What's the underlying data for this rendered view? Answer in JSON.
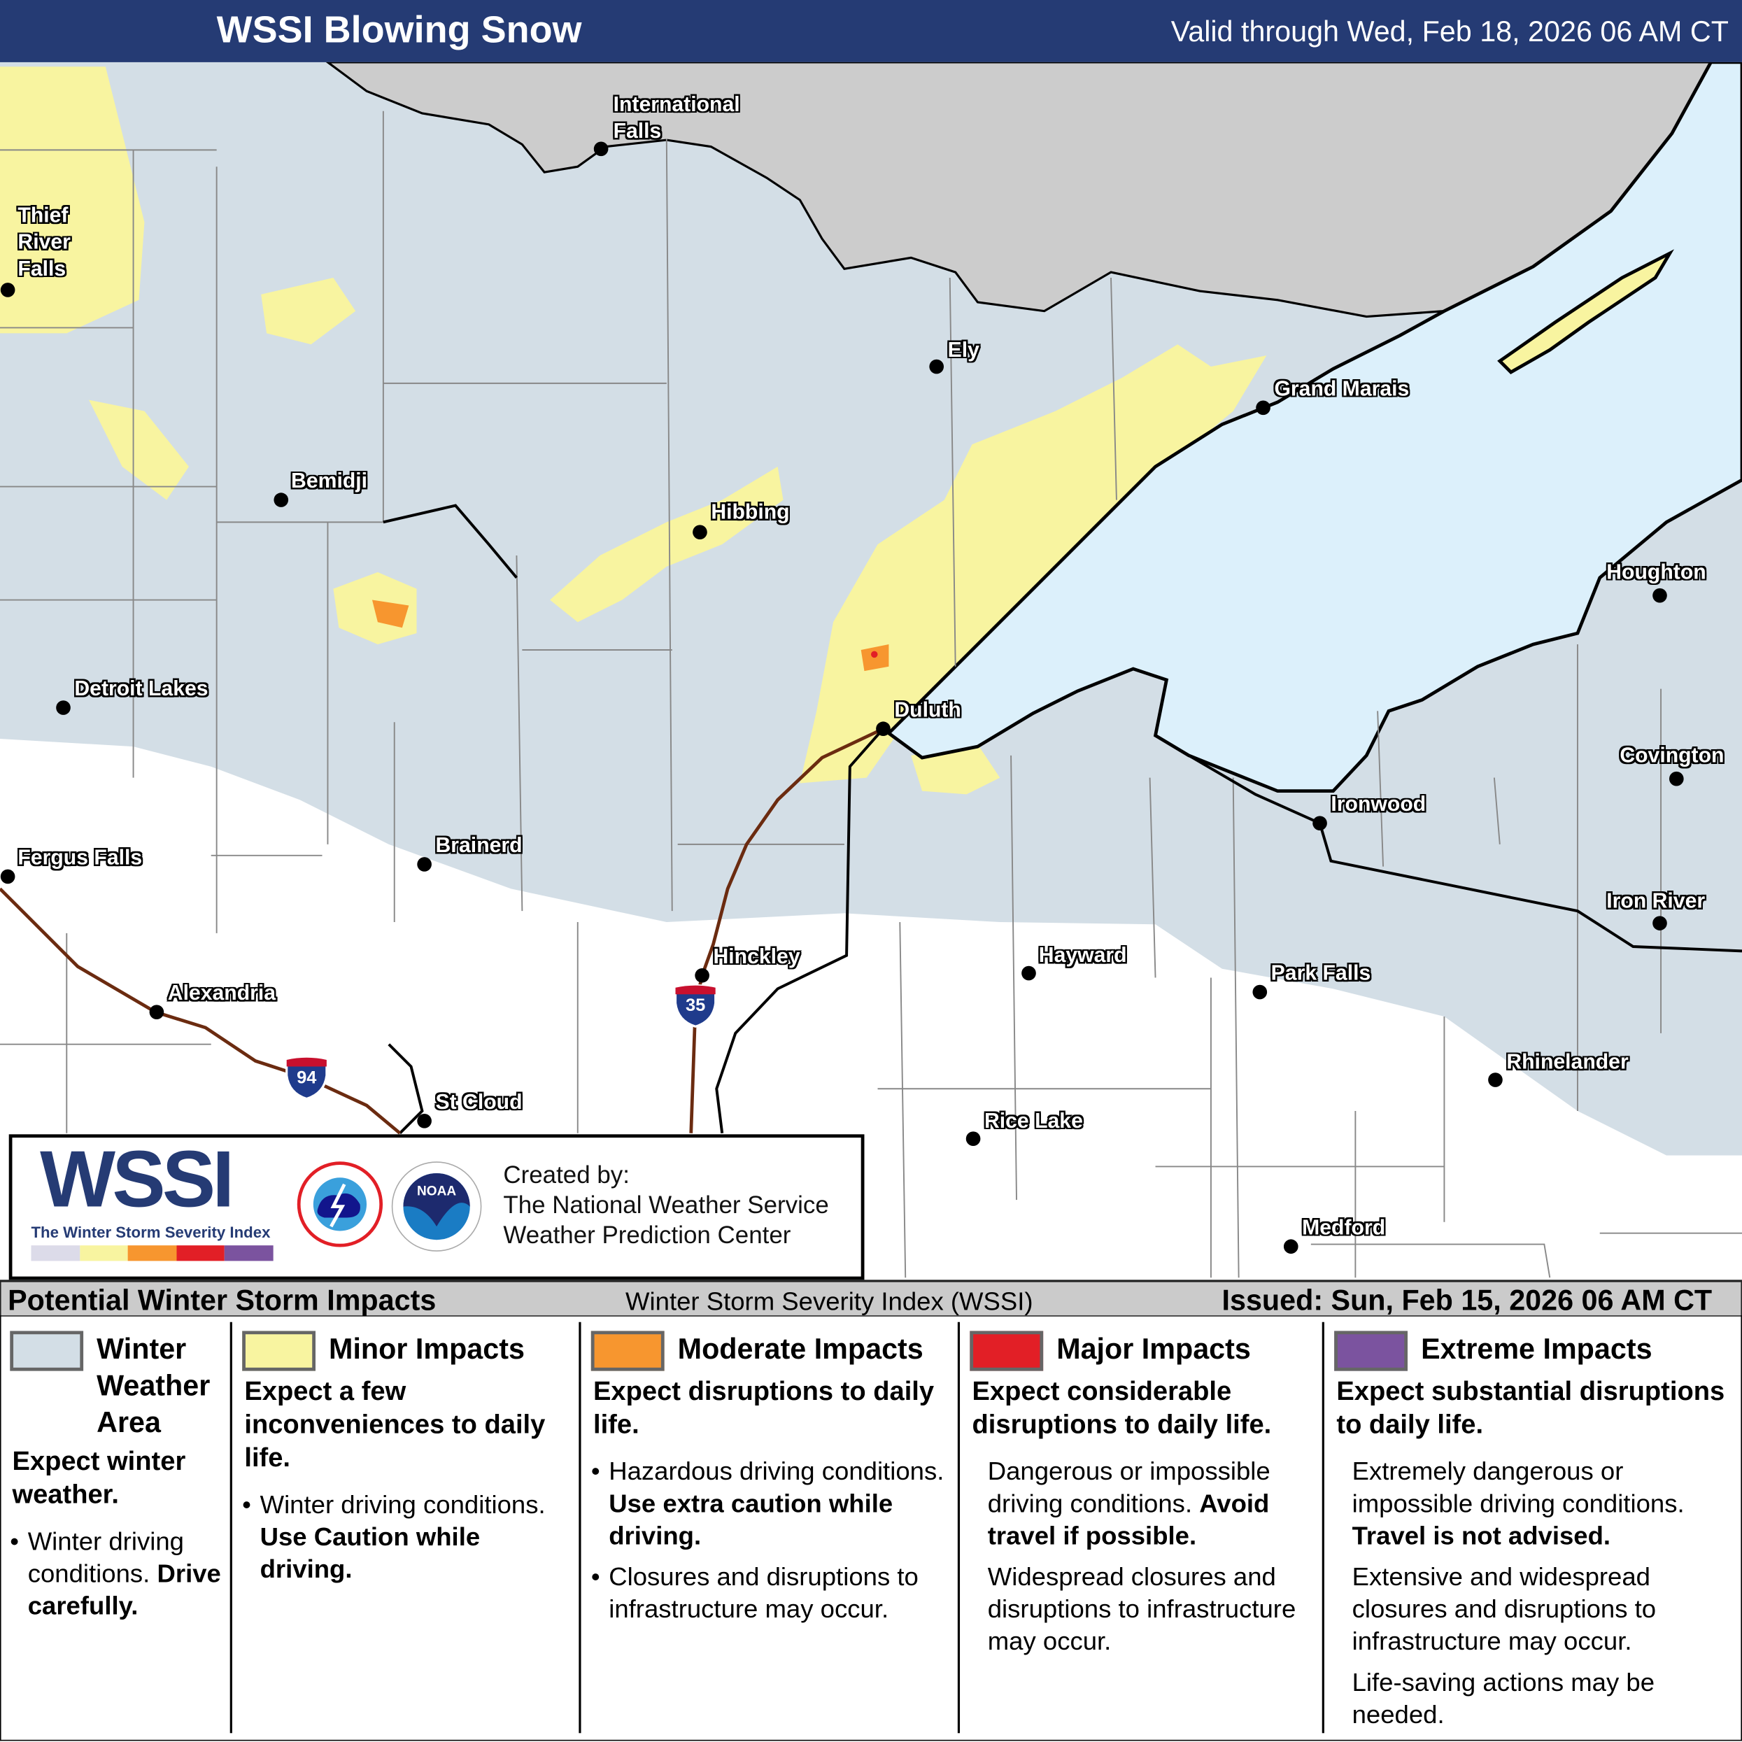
{
  "header": {
    "title": "WSSI Blowing Snow",
    "valid": "Valid through Wed, Feb 18, 2026 06 AM CT"
  },
  "colors": {
    "header": "#253b74",
    "winter_weather_area": "#d3dee6",
    "minor": "#f8f4a0",
    "moderate": "#f7962f",
    "major": "#e21f26",
    "extreme": "#7b539f",
    "lake": "#dcf0fb",
    "canada": "#cccccc",
    "interstate": "#6b2b10"
  },
  "cities": [
    {
      "name": "International\nFalls",
      "dot": [
        541,
        134
      ],
      "label": [
        552,
        83
      ]
    },
    {
      "name": "Thief\nRiver\nFalls",
      "dot": [
        7,
        261
      ],
      "label": [
        16,
        183
      ]
    },
    {
      "name": "Ely",
      "dot": [
        843,
        330
      ],
      "label": [
        853,
        304
      ]
    },
    {
      "name": "Grand Marais",
      "dot": [
        1137,
        367
      ],
      "label": [
        1147,
        339
      ]
    },
    {
      "name": "Bemidji",
      "dot": [
        253,
        450
      ],
      "label": [
        262,
        422
      ]
    },
    {
      "name": "Hibbing",
      "dot": [
        630,
        479
      ],
      "label": [
        640,
        450
      ]
    },
    {
      "name": "Houghton",
      "dot": [
        1494,
        536
      ],
      "label": [
        1446,
        504
      ]
    },
    {
      "name": "Detroit Lakes",
      "dot": [
        57,
        637
      ],
      "label": [
        67,
        609
      ]
    },
    {
      "name": "Duluth",
      "dot": [
        795,
        656
      ],
      "label": [
        805,
        628
      ]
    },
    {
      "name": "Covington",
      "dot": [
        1509,
        701
      ],
      "label": [
        1458,
        669
      ]
    },
    {
      "name": "Ironwood",
      "dot": [
        1188,
        741
      ],
      "label": [
        1198,
        713
      ]
    },
    {
      "name": "Fergus Falls",
      "dot": [
        7,
        789
      ],
      "label": [
        16,
        761
      ]
    },
    {
      "name": "Brainerd",
      "dot": [
        382,
        778
      ],
      "label": [
        392,
        750
      ]
    },
    {
      "name": "Iron River",
      "dot": [
        1494,
        831
      ],
      "label": [
        1446,
        800
      ]
    },
    {
      "name": "Hinckley",
      "dot": [
        632,
        878
      ],
      "label": [
        642,
        850
      ]
    },
    {
      "name": "Hayward",
      "dot": [
        926,
        876
      ],
      "label": [
        935,
        849
      ]
    },
    {
      "name": "Park Falls",
      "dot": [
        1134,
        893
      ],
      "label": [
        1144,
        865
      ]
    },
    {
      "name": "Alexandria",
      "dot": [
        141,
        911
      ],
      "label": [
        151,
        883
      ]
    },
    {
      "name": "Rhinelander",
      "dot": [
        1346,
        972
      ],
      "label": [
        1356,
        945
      ]
    },
    {
      "name": "St Cloud",
      "dot": [
        382,
        1009
      ],
      "label": [
        392,
        981
      ]
    },
    {
      "name": "Rice Lake",
      "dot": [
        876,
        1025
      ],
      "label": [
        886,
        998
      ]
    },
    {
      "name": "Medford",
      "dot": [
        1162,
        1122
      ],
      "label": [
        1172,
        1094
      ]
    }
  ],
  "interstates": [
    {
      "number": "94",
      "at": [
        276,
        970
      ]
    },
    {
      "number": "35",
      "at": [
        626,
        905
      ]
    }
  ],
  "credit": {
    "logo": "WSSI",
    "logo_sub": "The Winter Storm Severity Index",
    "nws_logo": "NATIONAL WEATHER SERVICE",
    "noaa_logo": "NOAA",
    "line1": "Created by:",
    "line2": "The National Weather Service",
    "line3": "Weather Prediction Center"
  },
  "legend_bar": {
    "left": "Potential Winter Storm Impacts",
    "center": "Winter Storm Severity Index (WSSI)",
    "right": "Issued: Sun, Feb 15, 2026 06 AM CT"
  },
  "categories": [
    {
      "title": "Winter\nWeather\nArea",
      "color": "#d3dee6",
      "headline": "Expect winter weather.",
      "body": [
        {
          "bullet": true,
          "parts": [
            {
              "text": "Winter driving conditions. "
            },
            {
              "text": "Drive carefully.",
              "bold": true
            }
          ]
        }
      ]
    },
    {
      "title": "Minor Impacts",
      "color": "#f8f4a0",
      "headline": "Expect a few inconveniences to daily life.",
      "body": [
        {
          "bullet": true,
          "parts": [
            {
              "text": "Winter driving conditions. "
            },
            {
              "text": "Use Caution while driving.",
              "bold": true
            }
          ]
        }
      ]
    },
    {
      "title": "Moderate Impacts",
      "color": "#f7962f",
      "headline": "Expect disruptions to daily life.",
      "body": [
        {
          "bullet": true,
          "parts": [
            {
              "text": "Hazardous driving conditions. "
            },
            {
              "text": "Use extra caution while driving.",
              "bold": true
            }
          ]
        },
        {
          "bullet": true,
          "parts": [
            {
              "text": "Closures and disruptions to infrastructure may occur."
            }
          ]
        }
      ]
    },
    {
      "title": "Major Impacts",
      "color": "#e21f26",
      "headline": "Expect considerable disruptions to daily life.",
      "body": [
        {
          "bullet": false,
          "parts": [
            {
              "text": "Dangerous or impossible driving conditions. "
            },
            {
              "text": "Avoid travel if possible.",
              "bold": true
            }
          ]
        },
        {
          "bullet": false,
          "parts": [
            {
              "text": "Widespread closures and disruptions to infrastructure may occur."
            }
          ]
        }
      ]
    },
    {
      "title": "Extreme Impacts",
      "color": "#7b539f",
      "headline": "Expect substantial disruptions to daily life.",
      "body": [
        {
          "bullet": false,
          "parts": [
            {
              "text": "Extremely dangerous or impossible driving conditions. "
            },
            {
              "text": "Travel is not advised.",
              "bold": true
            }
          ]
        },
        {
          "bullet": false,
          "parts": [
            {
              "text": "Extensive and widespread closures and disruptions to infrastructure may occur."
            }
          ]
        },
        {
          "bullet": false,
          "parts": [
            {
              "text": "Life-saving actions may be needed."
            }
          ]
        }
      ]
    }
  ]
}
